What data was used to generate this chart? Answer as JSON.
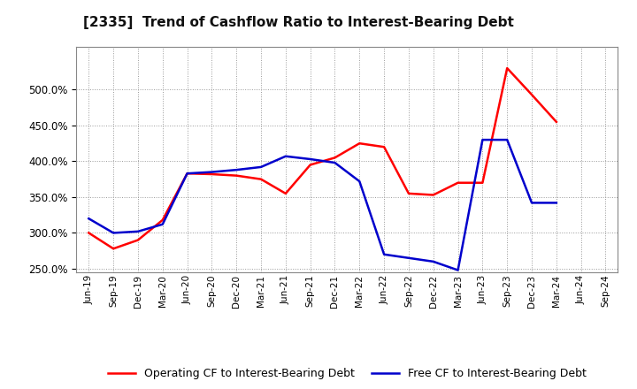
{
  "title": "[2335]  Trend of Cashflow Ratio to Interest-Bearing Debt",
  "x_labels": [
    "Jun-19",
    "Sep-19",
    "Dec-19",
    "Mar-20",
    "Jun-20",
    "Sep-20",
    "Dec-20",
    "Mar-21",
    "Jun-21",
    "Sep-21",
    "Dec-21",
    "Mar-22",
    "Jun-22",
    "Sep-22",
    "Dec-22",
    "Mar-23",
    "Jun-23",
    "Sep-23",
    "Dec-23",
    "Mar-24",
    "Jun-24",
    "Sep-24"
  ],
  "operating_cf": [
    300,
    278,
    290,
    318,
    383,
    382,
    380,
    375,
    355,
    395,
    405,
    425,
    420,
    355,
    353,
    370,
    370,
    530,
    493,
    455,
    null,
    null
  ],
  "free_cf": [
    320,
    300,
    302,
    312,
    383,
    385,
    388,
    392,
    407,
    403,
    398,
    372,
    270,
    265,
    260,
    248,
    430,
    430,
    342,
    342,
    null,
    null
  ],
  "operating_color": "#FF0000",
  "free_color": "#0000CC",
  "ylim_min": 245,
  "ylim_max": 560,
  "yticks": [
    250,
    300,
    350,
    400,
    450,
    500
  ],
  "legend_op": "Operating CF to Interest-Bearing Debt",
  "legend_free": "Free CF to Interest-Bearing Debt",
  "bg_color": "#FFFFFF"
}
